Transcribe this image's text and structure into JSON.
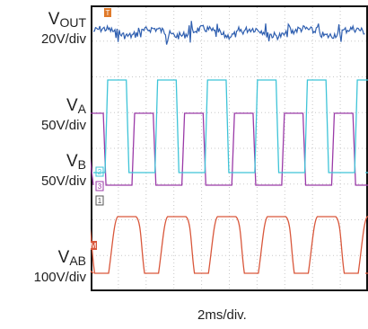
{
  "channels": [
    {
      "name_main": "V",
      "name_sub": "OUT",
      "scale": "20V/div",
      "color": "#2f5fb0"
    },
    {
      "name_main": "V",
      "name_sub": "A",
      "scale": "50V/div",
      "color": "#3fc4d8"
    },
    {
      "name_main": "V",
      "name_sub": "B",
      "scale": "50V/div",
      "color": "#9b3aa8"
    },
    {
      "name_main": "V",
      "name_sub": "AB",
      "scale": "100V/div",
      "color": "#d9573b"
    }
  ],
  "markers": {
    "ch1": "1",
    "ch2": "2",
    "ch3": "3",
    "trigger": "T",
    "math": "M"
  },
  "timebase": "2ms/div.",
  "chart_data": {
    "type": "line",
    "grid": true,
    "x_divisions": 10,
    "y_divisions": 8,
    "xlabel": "2ms/div.",
    "series": [
      {
        "name": "VOUT",
        "scale": "20V/div",
        "waveform": "ripple with periodic spikes",
        "period_div": 1.8
      },
      {
        "name": "VA",
        "scale": "50V/div",
        "waveform": "square",
        "period_div": 1.8
      },
      {
        "name": "VB",
        "scale": "50V/div",
        "waveform": "square, inverted",
        "period_div": 1.8
      },
      {
        "name": "VAB",
        "scale": "100V/div",
        "waveform": "trapezoid",
        "period_div": 1.8
      }
    ]
  }
}
